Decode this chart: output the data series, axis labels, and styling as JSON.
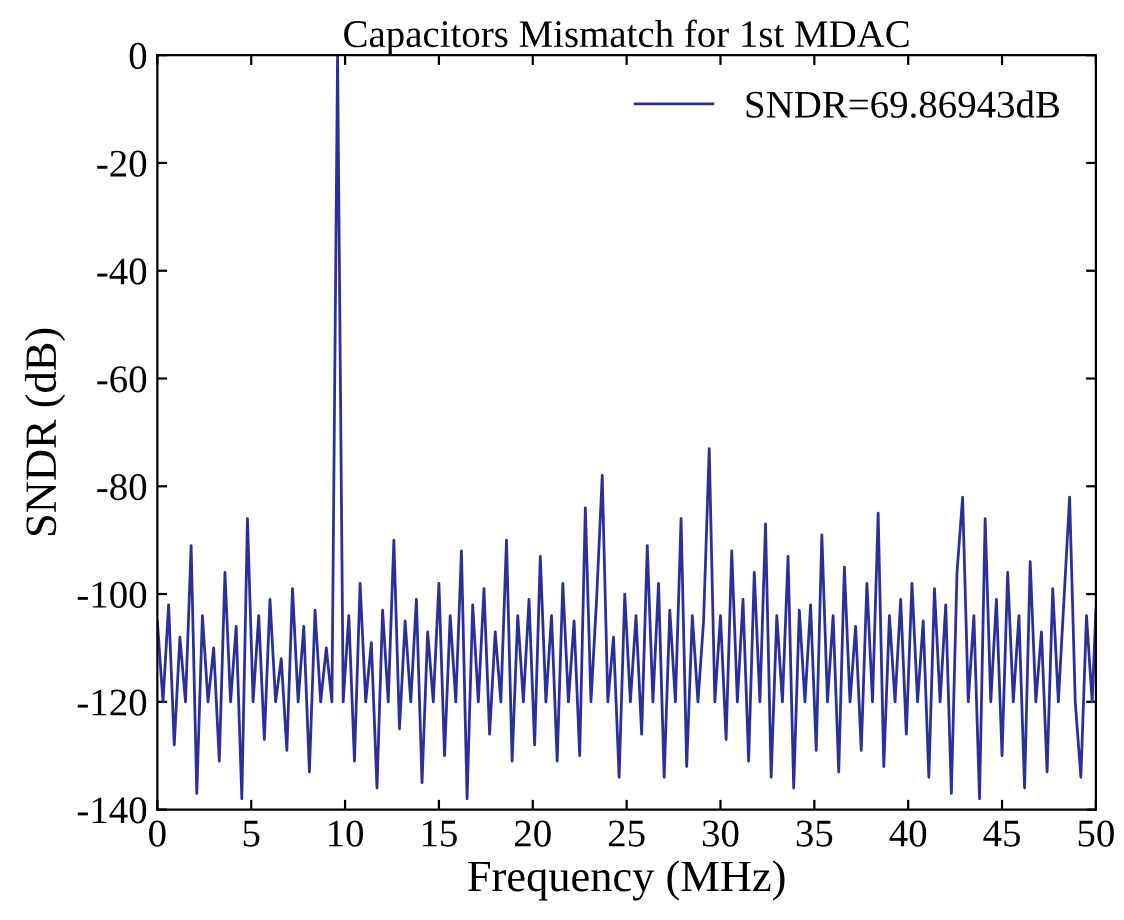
{
  "chart_data": {
    "type": "line",
    "title": "Capacitors Mismatch for 1st MDAC",
    "xlabel": "Frequency (MHz)",
    "ylabel": "SNDR (dB)",
    "xlim": [
      0,
      50
    ],
    "ylim": [
      -140,
      0
    ],
    "xticks": [
      0,
      5,
      10,
      15,
      20,
      25,
      30,
      35,
      40,
      45,
      50
    ],
    "yticks": [
      0,
      -20,
      -40,
      -60,
      -80,
      -100,
      -120,
      -140
    ],
    "grid": false,
    "legend": "top right",
    "marker": "none",
    "line_style": "solid",
    "series": [
      {
        "name": "SNDR=69.86943dB",
        "color": "#2b2f9c",
        "x": [
          0,
          0.3,
          0.6,
          0.9,
          1.2,
          1.5,
          1.8,
          2.1,
          2.4,
          2.7,
          3.0,
          3.3,
          3.6,
          3.9,
          4.2,
          4.5,
          4.8,
          5.1,
          5.4,
          5.7,
          6.0,
          6.3,
          6.6,
          6.9,
          7.2,
          7.5,
          7.8,
          8.1,
          8.4,
          8.7,
          9.0,
          9.3,
          9.6,
          9.9,
          10.2,
          10.5,
          10.8,
          11.1,
          11.4,
          11.7,
          12.0,
          12.3,
          12.6,
          12.9,
          13.2,
          13.5,
          13.8,
          14.1,
          14.4,
          14.7,
          15.0,
          15.3,
          15.6,
          15.9,
          16.2,
          16.5,
          16.8,
          17.1,
          17.4,
          17.7,
          18.0,
          18.3,
          18.6,
          18.9,
          19.2,
          19.5,
          19.8,
          20.1,
          20.4,
          20.7,
          21.0,
          21.3,
          21.6,
          21.9,
          22.2,
          22.5,
          22.8,
          23.1,
          23.4,
          23.7,
          24.0,
          24.3,
          24.6,
          24.9,
          25.2,
          25.5,
          25.8,
          26.1,
          26.4,
          26.7,
          27.0,
          27.3,
          27.6,
          27.9,
          28.2,
          28.5,
          28.8,
          29.1,
          29.4,
          29.7,
          30.0,
          30.3,
          30.6,
          30.9,
          31.2,
          31.5,
          31.8,
          32.1,
          32.4,
          32.7,
          33.0,
          33.3,
          33.6,
          33.9,
          34.2,
          34.5,
          34.8,
          35.1,
          35.4,
          35.7,
          36.0,
          36.3,
          36.6,
          36.9,
          37.2,
          37.5,
          37.8,
          38.1,
          38.4,
          38.7,
          39.0,
          39.3,
          39.6,
          39.9,
          40.2,
          40.5,
          40.8,
          41.1,
          41.4,
          41.7,
          42.0,
          42.3,
          42.6,
          42.9,
          43.2,
          43.5,
          43.8,
          44.1,
          44.4,
          44.7,
          45.0,
          45.3,
          45.6,
          45.9,
          46.2,
          46.5,
          46.8,
          47.1,
          47.4,
          47.7,
          48.0,
          48.3,
          48.6,
          48.9,
          49.2,
          49.5,
          49.8,
          50
        ],
        "values": [
          -105,
          -120,
          -102,
          -128,
          -108,
          -120,
          -91,
          -137,
          -104,
          -120,
          -110,
          -131,
          -96,
          -120,
          -106,
          -138,
          -86,
          -120,
          -104,
          -127,
          -101,
          -120,
          -112,
          -129,
          -99,
          -120,
          -106,
          -133,
          -103,
          -120,
          -110,
          -120,
          0,
          -120,
          -104,
          -131,
          -98,
          -120,
          -109,
          -136,
          -103,
          -120,
          -90,
          -125,
          -105,
          -120,
          -101,
          -135,
          -107,
          -120,
          -98,
          -130,
          -104,
          -120,
          -92,
          -138,
          -102,
          -120,
          -99,
          -126,
          -107,
          -120,
          -90,
          -131,
          -104,
          -120,
          -101,
          -128,
          -93,
          -120,
          -104,
          -131,
          -98,
          -120,
          -105,
          -130,
          -84,
          -120,
          -101,
          -78,
          -120,
          -108,
          -134,
          -100,
          -120,
          -104,
          -126,
          -91,
          -120,
          -98,
          -134,
          -103,
          -120,
          -86,
          -132,
          -104,
          -120,
          -105,
          -73,
          -120,
          -104,
          -127,
          -92,
          -120,
          -101,
          -131,
          -96,
          -120,
          -87,
          -134,
          -104,
          -120,
          -93,
          -136,
          -103,
          -120,
          -102,
          -129,
          -89,
          -120,
          -104,
          -133,
          -95,
          -120,
          -106,
          -129,
          -98,
          -120,
          -85,
          -132,
          -104,
          -120,
          -101,
          -126,
          -98,
          -120,
          -105,
          -134,
          -99,
          -120,
          -102,
          -137,
          -96,
          -82,
          -120,
          -104,
          -138,
          -86,
          -120,
          -101,
          -130,
          -96,
          -120,
          -104,
          -136,
          -94,
          -120,
          -107,
          -133,
          -99,
          -120,
          -101,
          -82,
          -120,
          -134,
          -104,
          -120,
          -103
        ]
      }
    ]
  }
}
